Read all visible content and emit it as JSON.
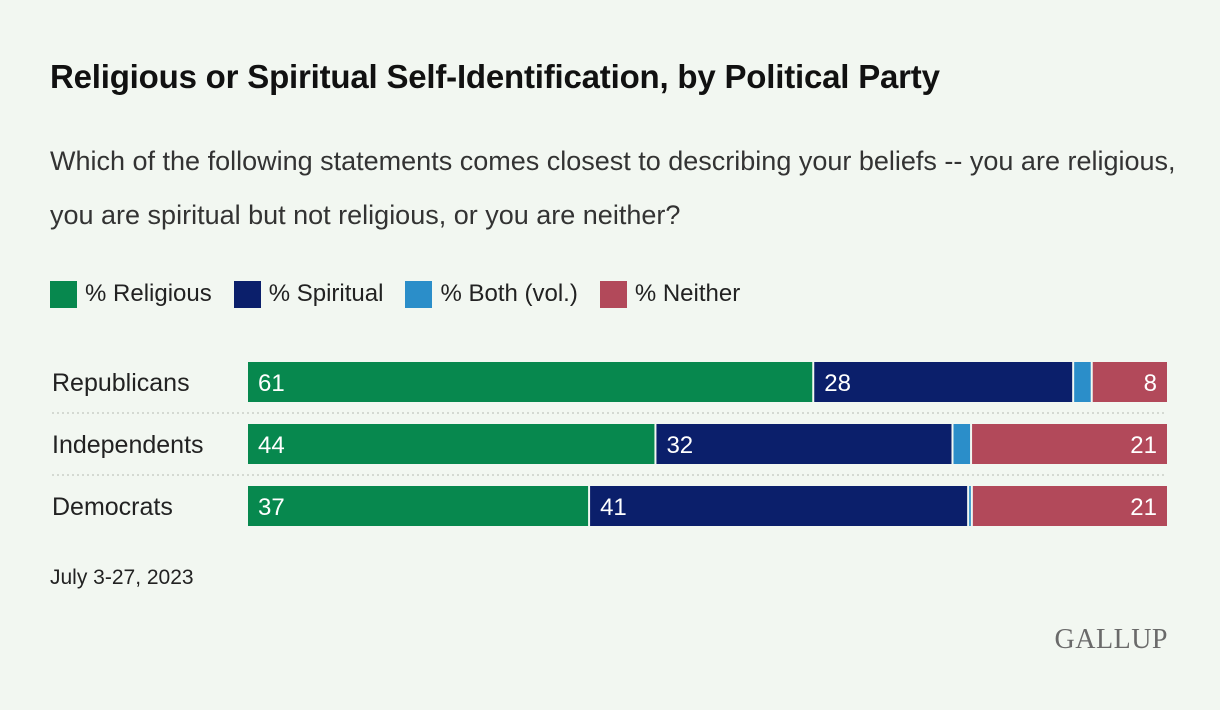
{
  "header": {
    "title": "Religious or Spiritual Self-Identification, by Political Party",
    "subtitle": "Which of the following statements comes closest to describing your beliefs -- you are religious, you are spiritual but not religious, or you are neither?"
  },
  "legend": [
    {
      "label": "% Religious",
      "color": "#07884e"
    },
    {
      "label": "% Spiritual",
      "color": "#0b1f6b"
    },
    {
      "label": "% Both (vol.)",
      "color": "#2b8ec9"
    },
    {
      "label": "% Neither",
      "color": "#b2495a"
    }
  ],
  "chart_data": {
    "type": "bar",
    "orientation": "horizontal-stacked",
    "categories": [
      "Republicans",
      "Independents",
      "Democrats"
    ],
    "series": [
      {
        "name": "% Religious",
        "values": [
          61,
          44,
          37
        ],
        "color": "#07884e"
      },
      {
        "name": "% Spiritual",
        "values": [
          28,
          32,
          41
        ],
        "color": "#0b1f6b"
      },
      {
        "name": "% Both (vol.)",
        "values": [
          2,
          2,
          0.4
        ],
        "color": "#2b8ec9"
      },
      {
        "name": "% Neither",
        "values": [
          8,
          21,
          21
        ],
        "color": "#b2495a"
      }
    ],
    "labeled_series": [
      "% Religious",
      "% Spiritual",
      "% Neither"
    ],
    "xlim": [
      0,
      100
    ],
    "grid": false
  },
  "footer": {
    "date": "July 3-27, 2023",
    "source_logo": "GALLUP"
  }
}
